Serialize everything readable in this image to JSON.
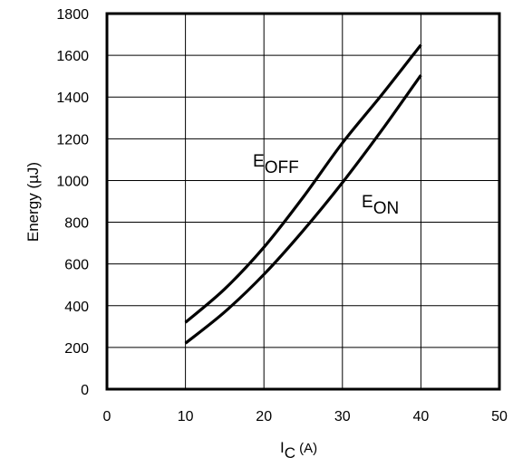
{
  "chart_data": {
    "type": "line",
    "xlabel": {
      "main": "I",
      "sub": "C",
      "unit": " (A)"
    },
    "ylabel": "Energy  (µJ)",
    "xlim": [
      0,
      50
    ],
    "ylim": [
      0,
      1800
    ],
    "xticks": [
      0,
      10,
      20,
      30,
      40,
      50
    ],
    "yticks": [
      0,
      200,
      400,
      600,
      800,
      1000,
      1200,
      1400,
      1600,
      1800
    ],
    "grid": true,
    "series": [
      {
        "name": "E_OFF",
        "label": {
          "main": "E",
          "sub": "OFF"
        },
        "x": [
          10,
          15,
          20,
          25,
          30,
          35,
          40
        ],
        "y": [
          320,
          480,
          680,
          920,
          1180,
          1410,
          1650
        ]
      },
      {
        "name": "E_ON",
        "label": {
          "main": "E",
          "sub": "ON"
        },
        "x": [
          10,
          15,
          20,
          25,
          30,
          35,
          40
        ],
        "y": [
          220,
          370,
          550,
          760,
          990,
          1240,
          1505
        ]
      }
    ]
  }
}
